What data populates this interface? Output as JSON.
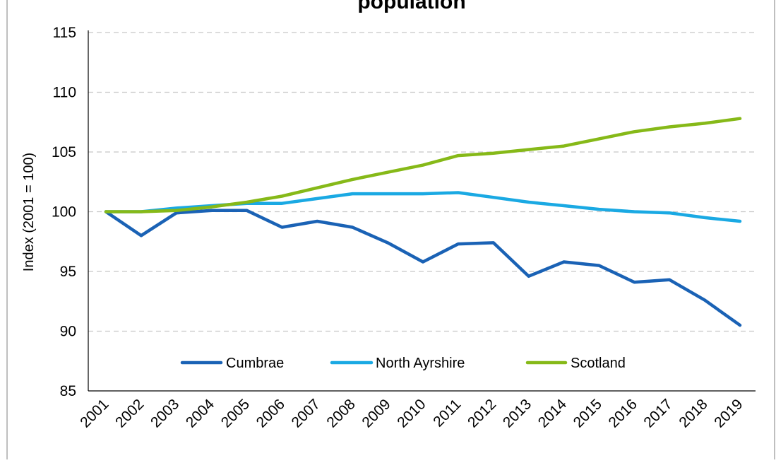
{
  "chart_data": {
    "type": "line",
    "title": "population",
    "ylabel": "Index (2001 = 100)",
    "xlabel": "",
    "categories": [
      "2001",
      "2002",
      "2003",
      "2004",
      "2005",
      "2006",
      "2007",
      "2008",
      "2009",
      "2010",
      "2011",
      "2012",
      "2013",
      "2014",
      "2015",
      "2016",
      "2017",
      "2018",
      "2019"
    ],
    "ylim": [
      85,
      115
    ],
    "yticks": [
      "85",
      "90",
      "95",
      "100",
      "105",
      "110",
      "115"
    ],
    "grid": true,
    "legend_position": "bottom-inside",
    "series": [
      {
        "name": "Cumbrae",
        "color": "#1a62b5",
        "values": [
          100.0,
          98.0,
          99.9,
          100.1,
          100.1,
          98.7,
          99.2,
          98.7,
          97.4,
          95.8,
          97.3,
          97.4,
          94.6,
          95.8,
          95.5,
          94.1,
          94.3,
          92.6,
          90.5
        ]
      },
      {
        "name": "North Ayrshire",
        "color": "#1aa9e3",
        "values": [
          100.0,
          100.0,
          100.3,
          100.5,
          100.7,
          100.7,
          101.1,
          101.5,
          101.5,
          101.5,
          101.6,
          101.2,
          100.8,
          100.5,
          100.2,
          100.0,
          99.9,
          99.5,
          99.2
        ]
      },
      {
        "name": "Scotland",
        "color": "#86b918",
        "values": [
          100.0,
          100.0,
          100.1,
          100.4,
          100.8,
          101.3,
          102.0,
          102.7,
          103.3,
          103.9,
          104.7,
          104.9,
          105.2,
          105.5,
          106.1,
          106.7,
          107.1,
          107.4,
          107.8
        ]
      }
    ]
  }
}
